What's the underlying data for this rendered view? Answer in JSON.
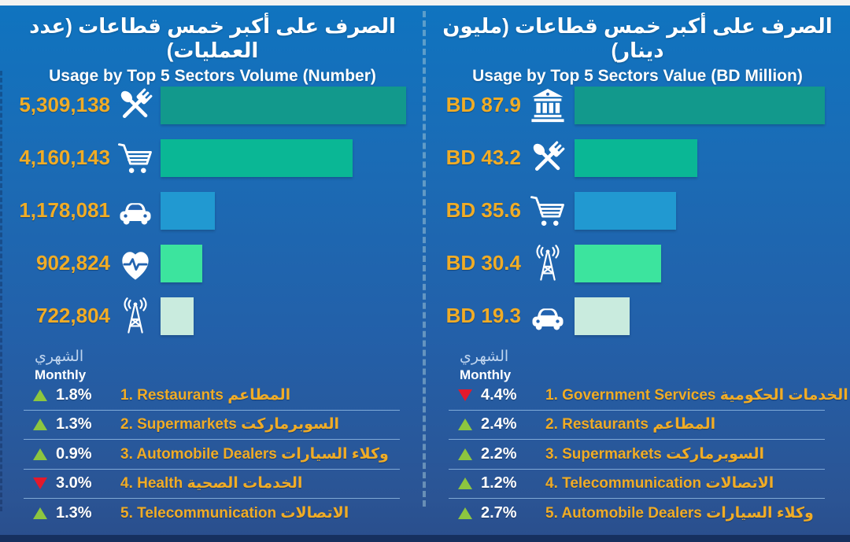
{
  "theme": {
    "background_top": "#0f74c0",
    "background_bottom": "#2b5494",
    "footer_bar": "#16305f",
    "top_strip": "#f3f3f1",
    "gold_text": "#f0ac26",
    "white_text": "#ffffff",
    "monthly_arabic_text": "#bed4ee",
    "trend_up_green": "#8dc63f",
    "trend_down_red": "#e4192b",
    "divider_dash": "#a5cad8",
    "bar_palette": [
      "#12998C",
      "#0AB795",
      "#2199D1",
      "#3CE49E",
      "#C9EBDE"
    ]
  },
  "panels": [
    {
      "title_ar": "الصرف على أكبر خمس قطاعات (عدد العمليات)",
      "title_en": "Usage by Top 5 Sectors Volume (Number)",
      "monthly_label_ar": "الشهري",
      "monthly_label_en": "Monthly",
      "bars": [
        {
          "display": "5,309,138",
          "value": 5309138,
          "icon": "utensils",
          "color": "#12998C"
        },
        {
          "display": "4,160,143",
          "value": 4160143,
          "icon": "cart",
          "color": "#0AB795"
        },
        {
          "display": "1,178,081",
          "value": 1178081,
          "icon": "car",
          "color": "#2199D1"
        },
        {
          "display": "902,824",
          "value": 902824,
          "icon": "health",
          "color": "#3CE49E"
        },
        {
          "display": "722,804",
          "value": 722804,
          "icon": "tower",
          "color": "#C9EBDE"
        }
      ],
      "trends": [
        {
          "direction": "up",
          "pct": "1.8%",
          "label": "1. Restaurants المطاعم"
        },
        {
          "direction": "up",
          "pct": "1.3%",
          "label": "2. Supermarkets السوبرماركت"
        },
        {
          "direction": "up",
          "pct": "0.9%",
          "label": "3. Automobile Dealers وكلاء السيارات"
        },
        {
          "direction": "down",
          "pct": "3.0%",
          "label": "4. Health الخدمات الصحية"
        },
        {
          "direction": "up",
          "pct": "1.3%",
          "label": "5. Telecommunication الاتصالات"
        }
      ]
    },
    {
      "title_ar": "الصرف على أكبر خمس قطاعات (مليون دينار)",
      "title_en": "Usage by Top 5 Sectors Value (BD Million)",
      "monthly_label_ar": "الشهري",
      "monthly_label_en": "Monthly",
      "bars": [
        {
          "display": "BD 87.9",
          "value": 87.9,
          "icon": "bank",
          "color": "#12998C"
        },
        {
          "display": "BD 43.2",
          "value": 43.2,
          "icon": "utensils",
          "color": "#0AB795"
        },
        {
          "display": "BD 35.6",
          "value": 35.6,
          "icon": "cart",
          "color": "#2199D1"
        },
        {
          "display": "BD 30.4",
          "value": 30.4,
          "icon": "tower",
          "color": "#3CE49E"
        },
        {
          "display": "BD 19.3",
          "value": 19.3,
          "icon": "car",
          "color": "#C9EBDE"
        }
      ],
      "trends": [
        {
          "direction": "down",
          "pct": "4.4%",
          "label": "1. Government Services الخدمات الحكومية"
        },
        {
          "direction": "up",
          "pct": "2.4%",
          "label": "2. Restaurants المطاعم"
        },
        {
          "direction": "up",
          "pct": "2.2%",
          "label": "3. Supermarkets السوبرماركت"
        },
        {
          "direction": "up",
          "pct": "1.2%",
          "label": "4. Telecommunication الاتصالات"
        },
        {
          "direction": "up",
          "pct": "2.7%",
          "label": "5. Automobile Dealers وكلاء السيارات"
        }
      ]
    }
  ],
  "chart_data": [
    {
      "type": "bar",
      "orientation": "horizontal",
      "title": "Usage by Top 5 Sectors Volume (Number)",
      "title_ar": "الصرف على أكبر خمس قطاعات (عدد العمليات)",
      "categories": [
        "Restaurants",
        "Supermarkets",
        "Automobile Dealers",
        "Health",
        "Telecommunication"
      ],
      "values": [
        5309138,
        4160143,
        1178081,
        902824,
        722804
      ],
      "value_labels": [
        "5,309,138",
        "4,160,143",
        "1,178,081",
        "902,824",
        "722,804"
      ],
      "monthly_change_pct": [
        1.8,
        1.3,
        0.9,
        -3.0,
        1.3
      ],
      "xlabel": "",
      "ylabel": "",
      "grid": false,
      "legend": "none"
    },
    {
      "type": "bar",
      "orientation": "horizontal",
      "title": "Usage by Top 5 Sectors Value (BD Million)",
      "title_ar": "الصرف على أكبر خمس قطاعات (مليون دينار)",
      "categories": [
        "Government Services",
        "Restaurants",
        "Supermarkets",
        "Telecommunication",
        "Automobile Dealers"
      ],
      "values": [
        87.9,
        43.2,
        35.6,
        30.4,
        19.3
      ],
      "value_labels": [
        "BD 87.9",
        "BD 43.2",
        "BD 35.6",
        "BD 30.4",
        "BD 19.3"
      ],
      "monthly_change_pct": [
        -4.4,
        2.4,
        2.2,
        1.2,
        2.7
      ],
      "xlabel": "",
      "ylabel": "",
      "grid": false,
      "legend": "none"
    }
  ]
}
